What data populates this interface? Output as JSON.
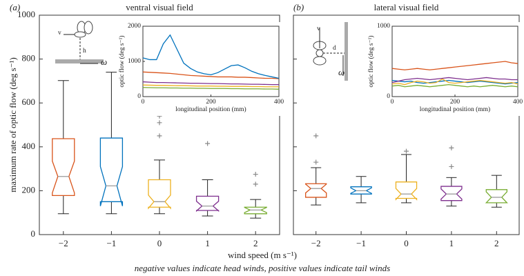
{
  "figure": {
    "xlabel": "wind speed (m s⁻¹)",
    "note": "negative values indicate head winds, positive values indicate tail winds"
  },
  "chart_data": [
    {
      "type": "box",
      "panel": "(a)",
      "title": "ventral visual field",
      "ylabel": "maximum rate of optic flow (deg s⁻¹)",
      "categories": [
        "−2",
        "−1",
        "0",
        "1",
        "2"
      ],
      "ylim": [
        0,
        1000
      ],
      "yticks": [
        0,
        200,
        400,
        600,
        800,
        1000
      ],
      "icon_labels": [
        "v",
        "h",
        "ω"
      ],
      "boxes": [
        {
          "color": "#d95319",
          "whisker_low": 95,
          "q1": 178,
          "notch_low": 190,
          "median": 265,
          "notch_high": 335,
          "q3": 437,
          "whisker_high": 702,
          "outliers": []
        },
        {
          "color": "#0072bd",
          "whisker_low": 95,
          "q1": 150,
          "notch_low": 130,
          "median": 222,
          "notch_high": 310,
          "q3": 440,
          "whisker_high": 740,
          "outliers": []
        },
        {
          "color": "#edb120",
          "whisker_low": 95,
          "q1": 125,
          "notch_low": 120,
          "median": 150,
          "notch_high": 180,
          "q3": 250,
          "whisker_high": 340,
          "outliers": [
            450,
            510,
            540
          ]
        },
        {
          "color": "#7e2f8e",
          "whisker_low": 85,
          "q1": 110,
          "notch_low": 108,
          "median": 130,
          "notch_high": 152,
          "q3": 175,
          "whisker_high": 250,
          "outliers": [
            415
          ]
        },
        {
          "color": "#77ac30",
          "whisker_low": 75,
          "q1": 95,
          "notch_low": 100,
          "median": 112,
          "notch_high": 124,
          "q3": 125,
          "whisker_high": 160,
          "outliers": [
            230,
            275
          ]
        }
      ]
    },
    {
      "type": "line",
      "ylabel": "optic flow (deg s⁻¹)",
      "xlabel": "longitudinal position (mm)",
      "xlim": [
        0,
        400
      ],
      "xticks": [
        0,
        200,
        400
      ],
      "ylim": [
        0,
        2000
      ],
      "yticks": [
        0,
        1000,
        2000
      ],
      "x": [
        0,
        20,
        40,
        60,
        80,
        100,
        120,
        140,
        160,
        180,
        200,
        220,
        240,
        260,
        280,
        300,
        320,
        340,
        360,
        380,
        400
      ],
      "series": [
        {
          "color": "#d95319",
          "values": [
            700,
            690,
            680,
            670,
            660,
            640,
            620,
            600,
            590,
            580,
            570,
            560,
            560,
            560,
            550,
            550,
            540,
            530,
            520,
            520,
            510
          ]
        },
        {
          "color": "#0072bd",
          "values": [
            1100,
            1050,
            1050,
            1500,
            1750,
            1350,
            950,
            800,
            700,
            650,
            620,
            680,
            780,
            880,
            900,
            820,
            720,
            650,
            600,
            560,
            520
          ]
        },
        {
          "color": "#edb120",
          "values": [
            330,
            325,
            320,
            320,
            315,
            310,
            310,
            305,
            300,
            300,
            300,
            295,
            295,
            290,
            290,
            290,
            285,
            285,
            280,
            280,
            280
          ]
        },
        {
          "color": "#7e2f8e",
          "values": [
            420,
            410,
            400,
            400,
            395,
            390,
            385,
            380,
            380,
            375,
            370,
            370,
            365,
            360,
            360,
            355,
            350,
            350,
            345,
            340,
            340
          ]
        },
        {
          "color": "#77ac30",
          "values": [
            260,
            255,
            250,
            250,
            245,
            245,
            240,
            240,
            235,
            235,
            230,
            230,
            230,
            225,
            225,
            220,
            220,
            220,
            215,
            215,
            210
          ]
        }
      ]
    },
    {
      "type": "box",
      "panel": "(b)",
      "title": "lateral visual field",
      "categories": [
        "−2",
        "−1",
        "0",
        "1",
        "2"
      ],
      "ylim": [
        0,
        1000
      ],
      "yticks": [
        0,
        200,
        400,
        600,
        800,
        1000
      ],
      "icon_labels": [
        "v",
        "d",
        "ω"
      ],
      "boxes": [
        {
          "color": "#d95319",
          "whisker_low": 135,
          "q1": 170,
          "notch_low": 190,
          "median": 210,
          "notch_high": 230,
          "q3": 232,
          "whisker_high": 305,
          "outliers": [
            330,
            450
          ]
        },
        {
          "color": "#0072bd",
          "whisker_low": 145,
          "q1": 185,
          "notch_low": 188,
          "median": 200,
          "notch_high": 213,
          "q3": 218,
          "whisker_high": 265,
          "outliers": []
        },
        {
          "color": "#edb120",
          "whisker_low": 145,
          "q1": 165,
          "notch_low": 160,
          "median": 185,
          "notch_high": 210,
          "q3": 240,
          "whisker_high": 365,
          "outliers": [
            380
          ]
        },
        {
          "color": "#7e2f8e",
          "whisker_low": 130,
          "q1": 155,
          "notch_low": 162,
          "median": 185,
          "notch_high": 208,
          "q3": 220,
          "whisker_high": 260,
          "outliers": [
            310,
            395
          ]
        },
        {
          "color": "#77ac30",
          "whisker_low": 125,
          "q1": 145,
          "notch_low": 145,
          "median": 170,
          "notch_high": 195,
          "q3": 205,
          "whisker_high": 270,
          "outliers": []
        }
      ]
    },
    {
      "type": "line",
      "ylabel": "optic flow (deg s⁻¹)",
      "xlabel": "longitudinal position (mm)",
      "xlim": [
        0,
        400
      ],
      "xticks": [
        0,
        200,
        400
      ],
      "ylim": [
        0,
        1000
      ],
      "yticks": [
        0,
        1000
      ],
      "x": [
        0,
        20,
        40,
        60,
        80,
        100,
        120,
        140,
        160,
        180,
        200,
        220,
        240,
        260,
        280,
        300,
        320,
        340,
        360,
        380,
        400
      ],
      "series": [
        {
          "color": "#d95319",
          "values": [
            400,
            390,
            380,
            390,
            400,
            390,
            380,
            390,
            400,
            410,
            420,
            430,
            440,
            450,
            460,
            470,
            480,
            490,
            500,
            480,
            470
          ]
        },
        {
          "color": "#0072bd",
          "values": [
            230,
            220,
            210,
            220,
            200,
            190,
            200,
            210,
            220,
            230,
            220,
            210,
            200,
            210,
            220,
            210,
            200,
            190,
            180,
            190,
            200
          ]
        },
        {
          "color": "#edb120",
          "values": [
            180,
            190,
            170,
            200,
            220,
            210,
            190,
            200,
            250,
            200,
            190,
            200,
            210,
            220,
            230,
            220,
            210,
            200,
            190,
            200,
            180
          ]
        },
        {
          "color": "#7e2f8e",
          "values": [
            200,
            220,
            240,
            250,
            260,
            250,
            240,
            250,
            260,
            270,
            260,
            250,
            240,
            250,
            260,
            270,
            260,
            250,
            250,
            240,
            240
          ]
        },
        {
          "color": "#77ac30",
          "values": [
            150,
            160,
            140,
            150,
            160,
            150,
            140,
            150,
            160,
            170,
            160,
            150,
            140,
            150,
            140,
            150,
            160,
            150,
            140,
            150,
            140
          ]
        }
      ]
    }
  ]
}
